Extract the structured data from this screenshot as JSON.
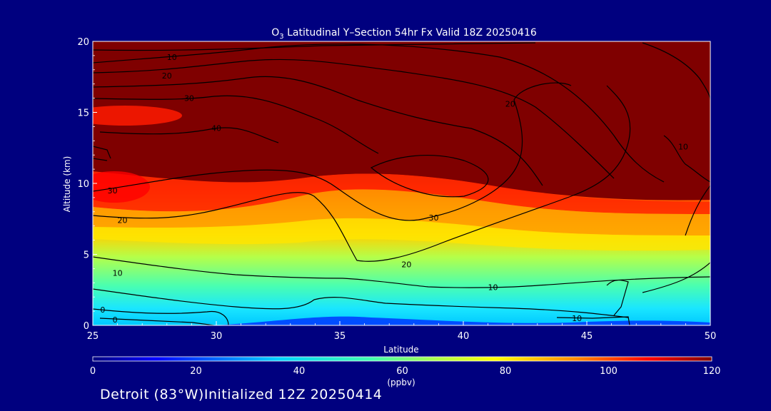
{
  "chart_data": {
    "type": "heatmap",
    "title_main": "O",
    "title_sub": "3",
    "title_rest": " Latitudinal Y–Section 54hr  Fx Valid 18Z 20250416",
    "xlabel": "Latitude",
    "ylabel": "Altitude (km)",
    "xlim": [
      25,
      50
    ],
    "ylim": [
      0,
      20
    ],
    "x_ticks": [
      "25",
      "30",
      "35",
      "40",
      "45",
      "50"
    ],
    "y_ticks": [
      "0",
      "5",
      "10",
      "15",
      "20"
    ],
    "colorbar": {
      "min": 0,
      "max": 120,
      "ticks": [
        "0",
        "20",
        "40",
        "60",
        "80",
        "100",
        "120"
      ],
      "label": "(ppbv)"
    },
    "colors": {
      "background": "#00007f",
      "text": "#ffffff",
      "contour": "#000000"
    },
    "contour_labels": [
      {
        "text": "10",
        "lat": 28.2,
        "alt": 18.9
      },
      {
        "text": "20",
        "lat": 28.0,
        "alt": 17.6
      },
      {
        "text": "30",
        "lat": 28.9,
        "alt": 16.0
      },
      {
        "text": "40",
        "lat": 30.0,
        "alt": 13.9
      },
      {
        "text": "30",
        "lat": 25.8,
        "alt": 9.5
      },
      {
        "text": "20",
        "lat": 26.2,
        "alt": 7.4
      },
      {
        "text": "10",
        "lat": 26.0,
        "alt": 3.7
      },
      {
        "text": "0",
        "lat": 25.4,
        "alt": 1.1
      },
      {
        "text": "0",
        "lat": 25.9,
        "alt": 0.4
      },
      {
        "text": "30",
        "lat": 38.8,
        "alt": 7.6
      },
      {
        "text": "20",
        "lat": 37.7,
        "alt": 4.3
      },
      {
        "text": "10",
        "lat": 41.2,
        "alt": 2.7
      },
      {
        "text": "10",
        "lat": 44.6,
        "alt": 0.5
      },
      {
        "text": "20",
        "lat": 41.9,
        "alt": 15.6
      },
      {
        "text": "10",
        "lat": 48.9,
        "alt": 12.6
      }
    ]
  },
  "footer": {
    "text": "Detroit (83°W)Initialized 12Z 20250414"
  }
}
